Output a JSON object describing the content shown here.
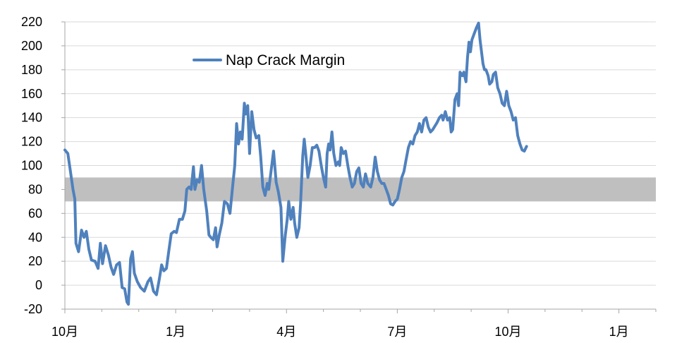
{
  "chart_data": {
    "type": "line",
    "title": "",
    "xlabel": "",
    "ylabel": "",
    "ylim": [
      -20,
      220
    ],
    "y_ticks": [
      220,
      200,
      180,
      160,
      140,
      120,
      100,
      80,
      60,
      40,
      20,
      0,
      -20
    ],
    "x_ticks": [
      "10月",
      "1月",
      "4月",
      "7月",
      "10月",
      "1月"
    ],
    "x_range": [
      0,
      16
    ],
    "grid": "horizontal",
    "legend": {
      "position": "top-left",
      "entries": [
        "Nap Crack Margin"
      ]
    },
    "band": {
      "from": 70,
      "to": 90,
      "color": "#bfbfbf"
    },
    "series": [
      {
        "name": "Nap Crack Margin",
        "color": "#4f81bd",
        "points": [
          [
            0.0,
            113
          ],
          [
            0.08,
            110
          ],
          [
            0.15,
            95
          ],
          [
            0.22,
            80
          ],
          [
            0.27,
            72
          ],
          [
            0.3,
            35
          ],
          [
            0.37,
            28
          ],
          [
            0.45,
            46
          ],
          [
            0.52,
            40
          ],
          [
            0.58,
            45
          ],
          [
            0.65,
            30
          ],
          [
            0.72,
            21
          ],
          [
            0.82,
            20
          ],
          [
            0.9,
            14
          ],
          [
            0.96,
            35
          ],
          [
            1.02,
            18
          ],
          [
            1.1,
            33
          ],
          [
            1.18,
            25
          ],
          [
            1.25,
            15
          ],
          [
            1.32,
            9
          ],
          [
            1.4,
            17
          ],
          [
            1.48,
            19
          ],
          [
            1.55,
            -2
          ],
          [
            1.62,
            -3
          ],
          [
            1.68,
            -14
          ],
          [
            1.72,
            -16
          ],
          [
            1.78,
            22
          ],
          [
            1.83,
            28
          ],
          [
            1.88,
            10
          ],
          [
            1.96,
            3
          ],
          [
            2.05,
            -2
          ],
          [
            2.15,
            -5
          ],
          [
            2.25,
            3
          ],
          [
            2.32,
            6
          ],
          [
            2.4,
            -5
          ],
          [
            2.48,
            -8
          ],
          [
            2.55,
            4
          ],
          [
            2.62,
            17
          ],
          [
            2.68,
            12
          ],
          [
            2.75,
            14
          ],
          [
            2.82,
            30
          ],
          [
            2.88,
            43
          ],
          [
            2.96,
            45
          ],
          [
            3.02,
            44
          ],
          [
            3.1,
            55
          ],
          [
            3.18,
            55
          ],
          [
            3.25,
            62
          ],
          [
            3.3,
            80
          ],
          [
            3.36,
            82
          ],
          [
            3.42,
            80
          ],
          [
            3.48,
            99
          ],
          [
            3.52,
            80
          ],
          [
            3.58,
            88
          ],
          [
            3.64,
            86
          ],
          [
            3.7,
            100
          ],
          [
            3.76,
            80
          ],
          [
            3.84,
            62
          ],
          [
            3.9,
            42
          ],
          [
            3.95,
            40
          ],
          [
            4.02,
            38
          ],
          [
            4.08,
            48
          ],
          [
            4.12,
            32
          ],
          [
            4.18,
            42
          ],
          [
            4.25,
            52
          ],
          [
            4.32,
            70
          ],
          [
            4.4,
            68
          ],
          [
            4.47,
            60
          ],
          [
            4.54,
            82
          ],
          [
            4.6,
            100
          ],
          [
            4.65,
            135
          ],
          [
            4.7,
            118
          ],
          [
            4.75,
            128
          ],
          [
            4.8,
            122
          ],
          [
            4.86,
            152
          ],
          [
            4.9,
            143
          ],
          [
            4.95,
            150
          ],
          [
            5.0,
            110
          ],
          [
            5.06,
            145
          ],
          [
            5.12,
            130
          ],
          [
            5.18,
            123
          ],
          [
            5.25,
            125
          ],
          [
            5.3,
            108
          ],
          [
            5.36,
            82
          ],
          [
            5.42,
            75
          ],
          [
            5.48,
            85
          ],
          [
            5.52,
            80
          ],
          [
            5.58,
            95
          ],
          [
            5.65,
            112
          ],
          [
            5.72,
            86
          ],
          [
            5.78,
            78
          ],
          [
            5.85,
            65
          ],
          [
            5.9,
            20
          ],
          [
            5.96,
            40
          ],
          [
            6.02,
            55
          ],
          [
            6.06,
            70
          ],
          [
            6.12,
            55
          ],
          [
            6.18,
            65
          ],
          [
            6.22,
            52
          ],
          [
            6.28,
            40
          ],
          [
            6.34,
            48
          ],
          [
            6.38,
            68
          ],
          [
            6.44,
            108
          ],
          [
            6.48,
            122
          ],
          [
            6.52,
            110
          ],
          [
            6.58,
            90
          ],
          [
            6.64,
            100
          ],
          [
            6.7,
            115
          ],
          [
            6.76,
            115
          ],
          [
            6.82,
            117
          ],
          [
            6.88,
            112
          ],
          [
            6.94,
            100
          ],
          [
            7.0,
            90
          ],
          [
            7.06,
            82
          ],
          [
            7.1,
            110
          ],
          [
            7.14,
            118
          ],
          [
            7.18,
            113
          ],
          [
            7.23,
            128
          ],
          [
            7.28,
            110
          ],
          [
            7.34,
            100
          ],
          [
            7.4,
            103
          ],
          [
            7.44,
            100
          ],
          [
            7.48,
            115
          ],
          [
            7.54,
            110
          ],
          [
            7.6,
            112
          ],
          [
            7.66,
            100
          ],
          [
            7.72,
            90
          ],
          [
            7.78,
            82
          ],
          [
            7.84,
            85
          ],
          [
            7.9,
            95
          ],
          [
            7.96,
            98
          ],
          [
            8.02,
            85
          ],
          [
            8.08,
            82
          ],
          [
            8.14,
            93
          ],
          [
            8.2,
            85
          ],
          [
            8.28,
            82
          ],
          [
            8.34,
            90
          ],
          [
            8.4,
            107
          ],
          [
            8.46,
            95
          ],
          [
            8.52,
            88
          ],
          [
            8.58,
            85
          ],
          [
            8.64,
            85
          ],
          [
            8.7,
            80
          ],
          [
            8.76,
            75
          ],
          [
            8.82,
            68
          ],
          [
            8.88,
            67
          ],
          [
            8.94,
            70
          ],
          [
            9.0,
            72
          ],
          [
            9.06,
            80
          ],
          [
            9.12,
            90
          ],
          [
            9.18,
            95
          ],
          [
            9.24,
            105
          ],
          [
            9.3,
            115
          ],
          [
            9.36,
            120
          ],
          [
            9.42,
            118
          ],
          [
            9.48,
            125
          ],
          [
            9.54,
            128
          ],
          [
            9.6,
            135
          ],
          [
            9.66,
            128
          ],
          [
            9.72,
            138
          ],
          [
            9.78,
            140
          ],
          [
            9.84,
            132
          ],
          [
            9.9,
            128
          ],
          [
            9.96,
            130
          ],
          [
            10.02,
            133
          ],
          [
            10.08,
            136
          ],
          [
            10.14,
            140
          ],
          [
            10.2,
            142
          ],
          [
            10.24,
            138
          ],
          [
            10.3,
            145
          ],
          [
            10.36,
            138
          ],
          [
            10.42,
            140
          ],
          [
            10.46,
            128
          ],
          [
            10.5,
            130
          ],
          [
            10.56,
            155
          ],
          [
            10.62,
            160
          ],
          [
            10.66,
            150
          ],
          [
            10.7,
            178
          ],
          [
            10.76,
            175
          ],
          [
            10.8,
            178
          ],
          [
            10.86,
            170
          ],
          [
            10.9,
            190
          ],
          [
            10.94,
            203
          ],
          [
            10.98,
            195
          ],
          [
            11.02,
            205
          ],
          [
            11.08,
            210
          ],
          [
            11.14,
            215
          ],
          [
            11.2,
            219
          ],
          [
            11.24,
            205
          ],
          [
            11.28,
            195
          ],
          [
            11.32,
            185
          ],
          [
            11.36,
            180
          ],
          [
            11.4,
            180
          ],
          [
            11.46,
            175
          ],
          [
            11.5,
            168
          ],
          [
            11.56,
            170
          ],
          [
            11.6,
            176
          ],
          [
            11.66,
            178
          ],
          [
            11.72,
            165
          ],
          [
            11.78,
            160
          ],
          [
            11.84,
            152
          ],
          [
            11.9,
            150
          ],
          [
            11.96,
            162
          ],
          [
            12.02,
            150
          ],
          [
            12.08,
            145
          ],
          [
            12.14,
            138
          ],
          [
            12.2,
            140
          ],
          [
            12.26,
            125
          ],
          [
            12.32,
            118
          ],
          [
            12.38,
            113
          ],
          [
            12.44,
            112
          ],
          [
            12.5,
            116
          ]
        ]
      }
    ]
  }
}
